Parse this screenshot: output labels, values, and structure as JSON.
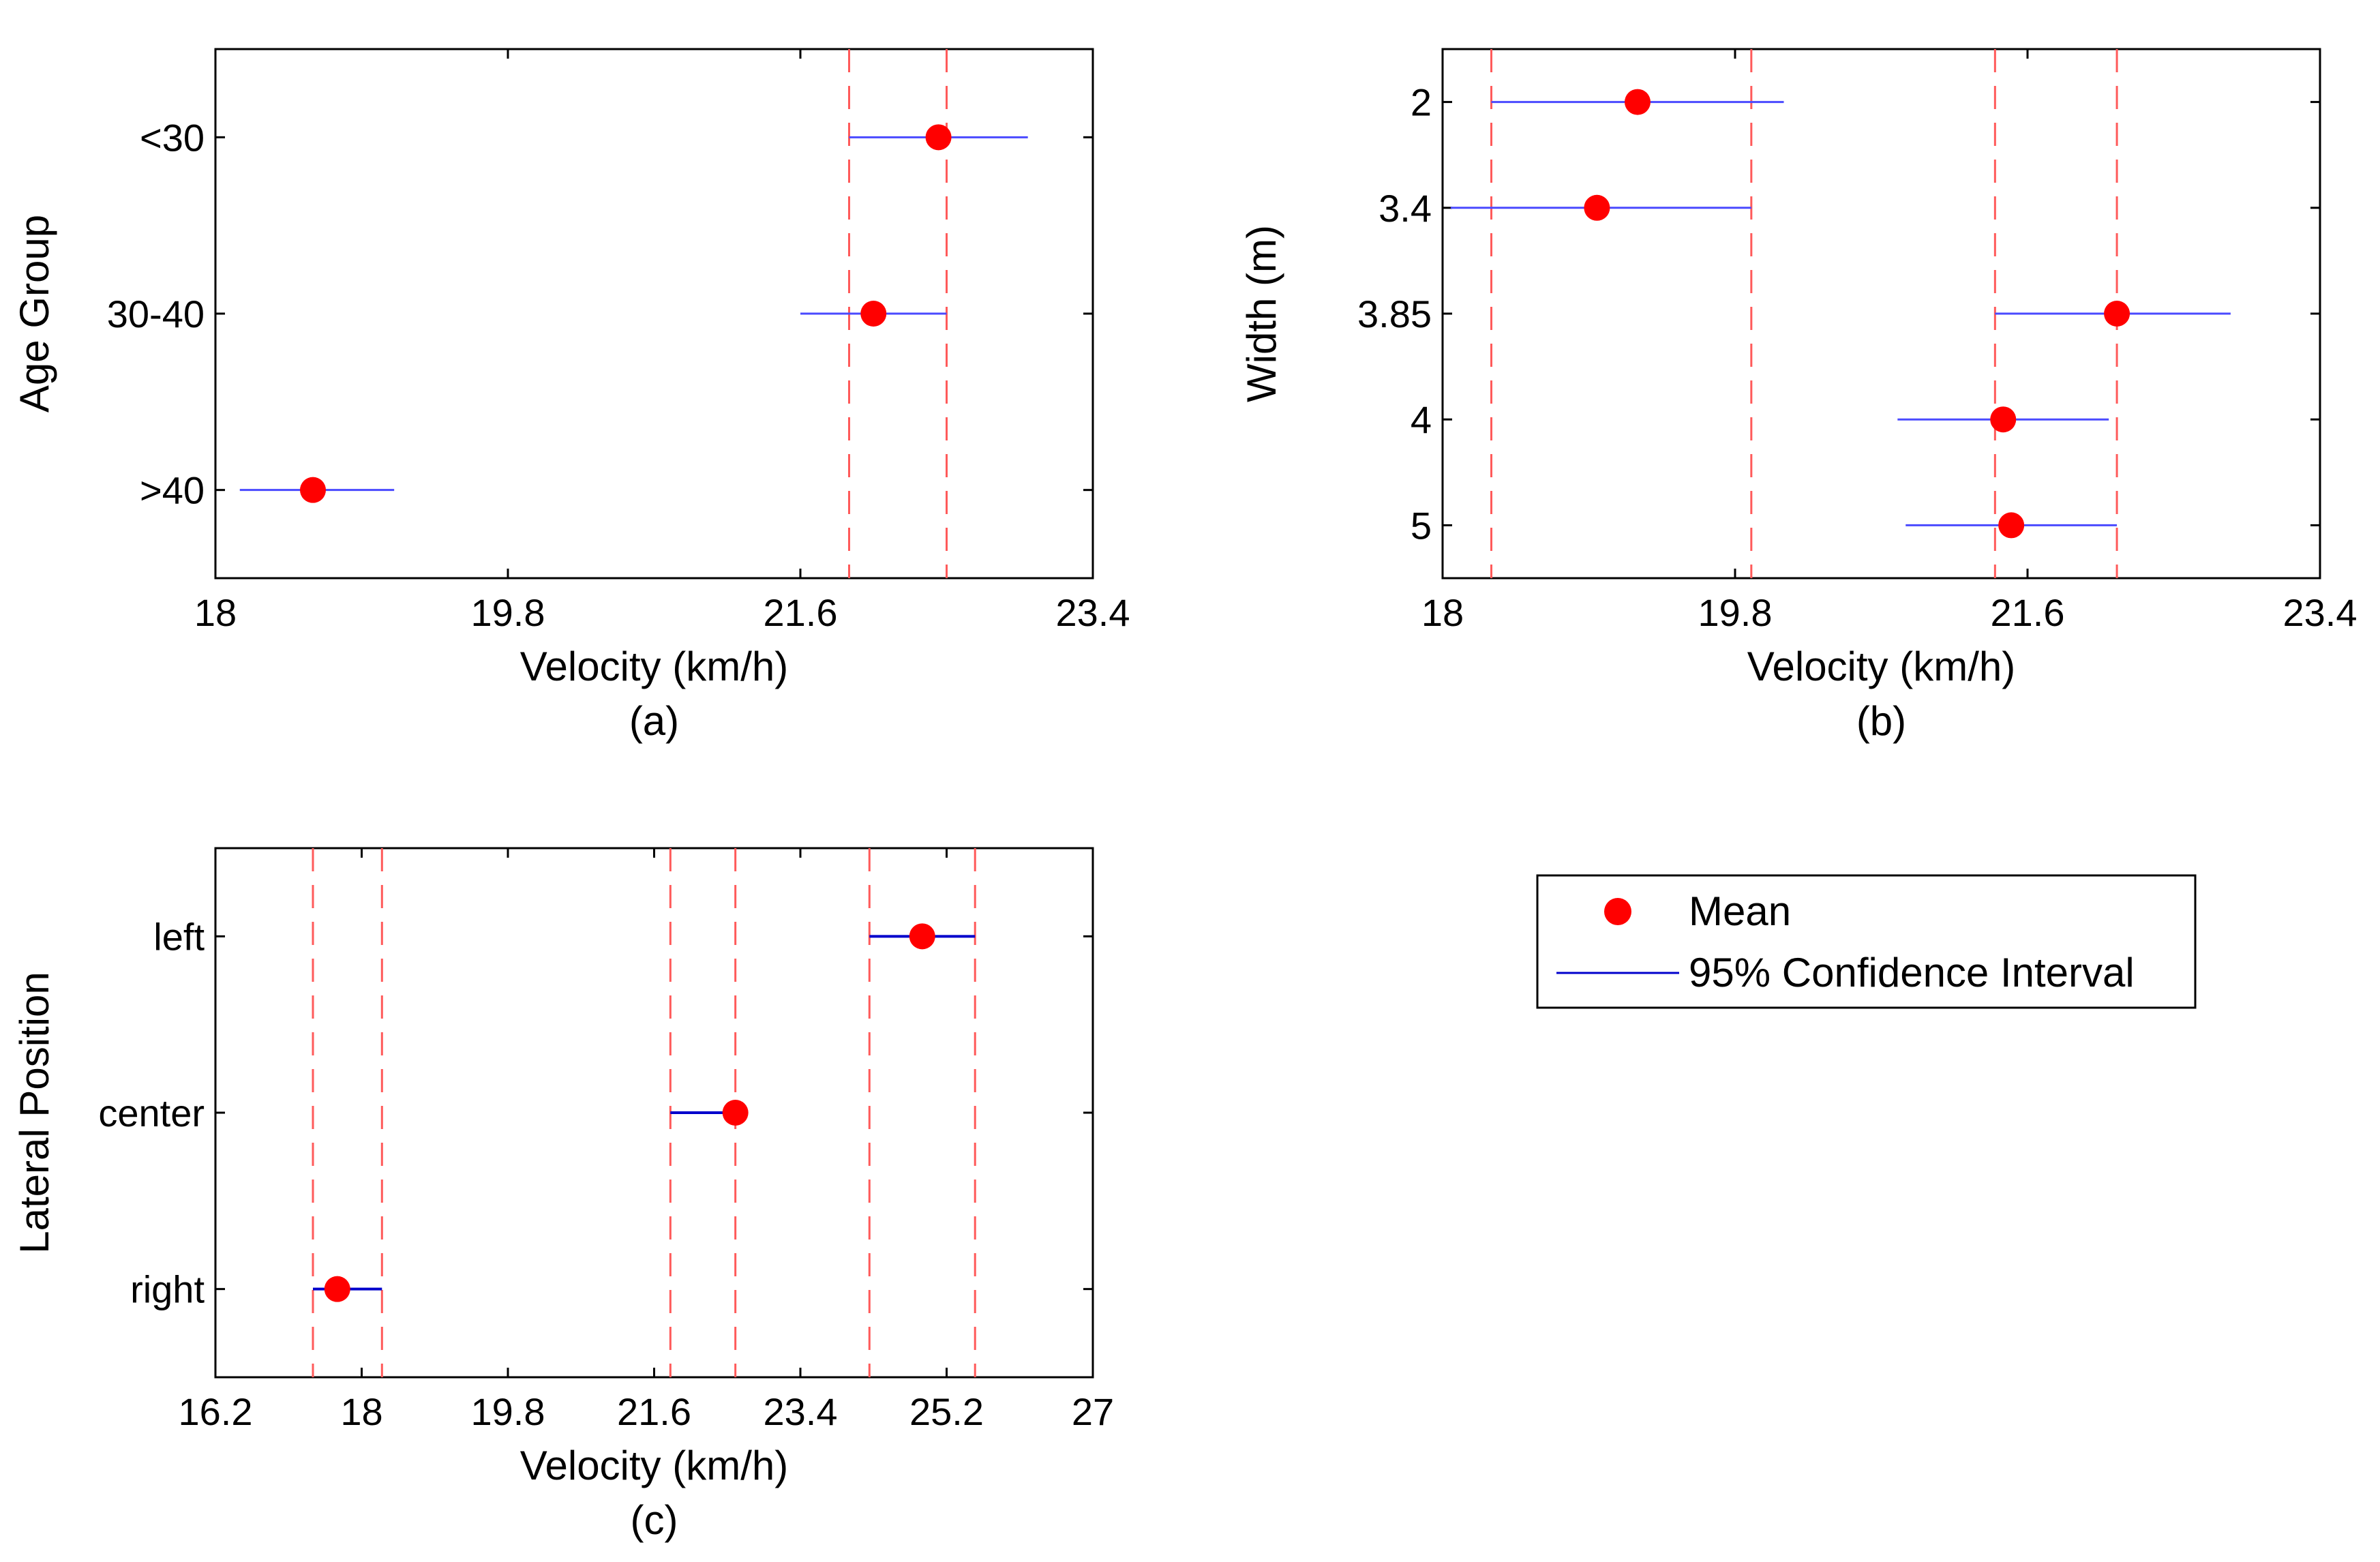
{
  "chart_data": [
    {
      "type": "scatter",
      "panel_label": "(a)",
      "xlabel": "Velocity (km/h)",
      "ylabel": "Age Group",
      "xlim": [
        18,
        23.4
      ],
      "xticks": [
        18,
        19.8,
        21.6,
        23.4
      ],
      "x_tick_labels": [
        "18",
        "19.8",
        "21.6",
        "23.4"
      ],
      "categories": [
        "<30",
        "30-40",
        ">40"
      ],
      "cat_positions": [
        1,
        2,
        3
      ],
      "ylim": [
        0.5,
        3.5
      ],
      "means": [
        22.45,
        22.05,
        18.6
      ],
      "ci_low": [
        21.9,
        21.6,
        18.15
      ],
      "ci_high": [
        23.0,
        22.5,
        19.1
      ],
      "ci_style": "light",
      "ref_lines": [
        21.9,
        22.5
      ]
    },
    {
      "type": "scatter",
      "panel_label": "(b)",
      "xlabel": "Velocity (km/h)",
      "ylabel": "Width (m)",
      "xlim": [
        18,
        23.4
      ],
      "xticks": [
        18,
        19.8,
        21.6,
        23.4
      ],
      "x_tick_labels": [
        "18",
        "19.8",
        "21.6",
        "23.4"
      ],
      "categories": [
        "2",
        "3.4",
        "3.85",
        "4",
        "5"
      ],
      "cat_positions": [
        1,
        1.6,
        2.2,
        2.8,
        3.4
      ],
      "ylim": [
        0.7,
        3.7
      ],
      "means": [
        19.2,
        18.95,
        22.15,
        21.45,
        21.5
      ],
      "ci_low": [
        18.3,
        18.05,
        21.4,
        20.8,
        20.85
      ],
      "ci_high": [
        20.1,
        19.9,
        22.85,
        22.1,
        22.15
      ],
      "ci_style": "light",
      "ref_lines": [
        18.3,
        19.9,
        21.4,
        22.15
      ]
    },
    {
      "type": "scatter",
      "panel_label": "(c)",
      "xlabel": "Velocity (km/h)",
      "ylabel": "Lateral Position",
      "xlim": [
        16.2,
        27
      ],
      "xticks": [
        16.2,
        18,
        19.8,
        21.6,
        23.4,
        25.2,
        27
      ],
      "x_tick_labels": [
        "16.2",
        "18",
        "19.8",
        "21.6",
        "23.4",
        "25.2",
        "27"
      ],
      "categories": [
        "left",
        "center",
        "right"
      ],
      "cat_positions": [
        1,
        2,
        3
      ],
      "ylim": [
        0.5,
        3.5
      ],
      "means": [
        24.9,
        22.6,
        17.7
      ],
      "ci_low": [
        24.25,
        21.8,
        17.4
      ],
      "ci_high": [
        25.55,
        22.6,
        18.25
      ],
      "ci_style": "dark",
      "ref_lines": [
        17.4,
        18.25,
        21.8,
        22.6,
        24.25,
        25.55
      ]
    }
  ],
  "legend": {
    "items": [
      {
        "label": "Mean",
        "kind": "marker",
        "color": "#ff0000"
      },
      {
        "label": "95% Confidence Interval",
        "kind": "line",
        "color": "#0000cc"
      }
    ]
  },
  "colors": {
    "mean": "#ff0000",
    "ci": "#4a4aff",
    "ci_dark": "#0000cc",
    "reference": "#ff5a5a"
  }
}
